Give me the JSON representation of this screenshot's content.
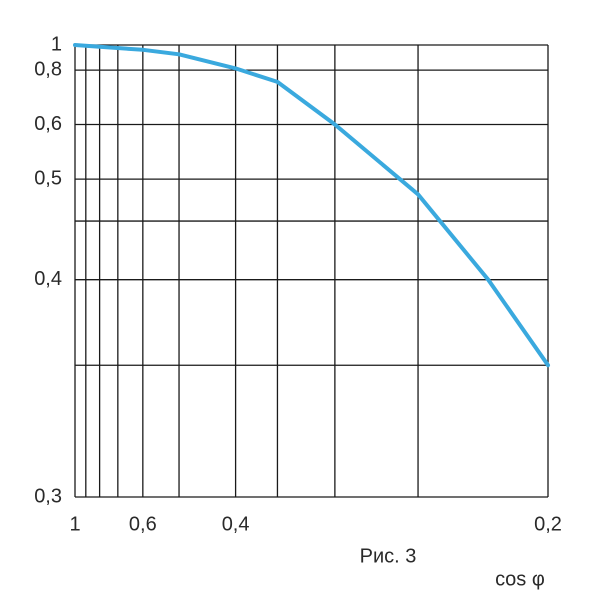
{
  "chart_data": {
    "type": "line",
    "caption": "Рис. 3",
    "xlabel": "cos φ",
    "x": [
      1,
      0.8,
      0.6,
      0.5,
      0.4,
      0.35,
      0.3,
      0.25,
      0.22,
      0.2
    ],
    "series": [
      {
        "color": "#3aa9de",
        "values": [
          1,
          0.98,
          0.95,
          0.91,
          0.81,
          0.74,
          0.6,
          0.48,
          0.4,
          0.35
        ]
      }
    ],
    "xlim": [
      1,
      0.2
    ],
    "ylim": [
      1,
      0.3
    ],
    "xscale": {
      "type": "power",
      "exponent": -1.2
    },
    "yscale": {
      "type": "power",
      "exponent": -2
    },
    "xticks": [
      1,
      {
        "value": 0.6,
        "label": "0,6"
      },
      {
        "value": 0.4,
        "label": "0,4"
      },
      {
        "value": 0.2,
        "label": "0,2"
      }
    ],
    "yticks": [
      1,
      {
        "value": 0.8,
        "label": "0,8"
      },
      {
        "value": 0.6,
        "label": "0,6"
      },
      {
        "value": 0.5,
        "label": "0,5"
      },
      {
        "value": 0.4,
        "label": "0,4"
      },
      {
        "value": 0.3,
        "label": "0,3"
      }
    ],
    "xgrid": [
      1,
      0.9,
      0.8,
      0.7,
      0.6,
      0.5,
      0.4,
      0.35,
      0.3,
      0.25,
      0.2
    ],
    "ygrid": [
      1,
      0.8,
      0.6,
      0.5,
      0.45,
      0.4,
      0.35,
      0.3
    ],
    "grid": true
  }
}
